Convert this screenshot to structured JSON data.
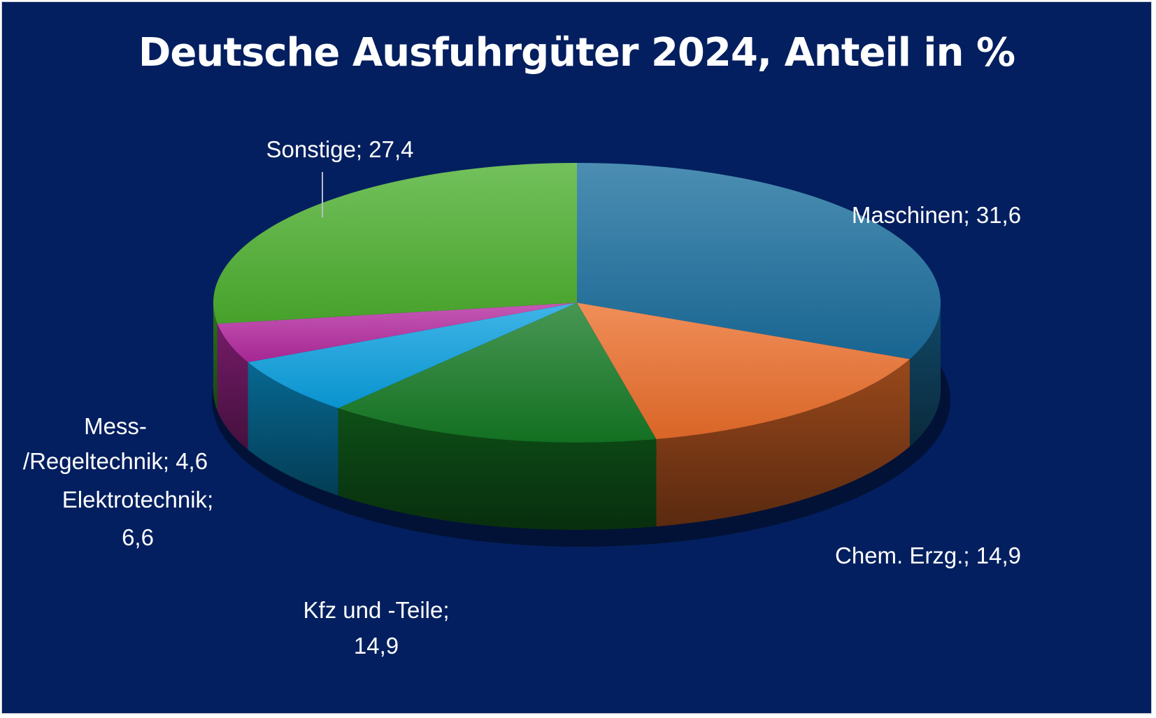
{
  "chart_data": {
    "type": "pie",
    "title": "Deutsche Ausfuhrgüter 2024, Anteil in %",
    "slices": [
      {
        "label_lines": [
          "Maschinen; 31,6"
        ],
        "value": 31.6,
        "color": "#1a6e9e"
      },
      {
        "label_lines": [
          "Chem. Erzg.; 14,9"
        ],
        "value": 14.9,
        "color": "#ec6e2a"
      },
      {
        "label_lines": [
          "Kfz und -Teile;",
          "14,9"
        ],
        "value": 14.9,
        "color": "#157a24"
      },
      {
        "label_lines": [
          "Elektrotechnik;",
          "6,6"
        ],
        "value": 6.6,
        "color": "#0aa0e0"
      },
      {
        "label_lines": [
          "Mess-",
          "/Regeltechnik; 4,6"
        ],
        "value": 4.6,
        "color": "#b42aa0"
      },
      {
        "label_lines": [
          "Sonstige; 27,4"
        ],
        "value": 27.4,
        "color": "#4caf2e"
      }
    ]
  }
}
